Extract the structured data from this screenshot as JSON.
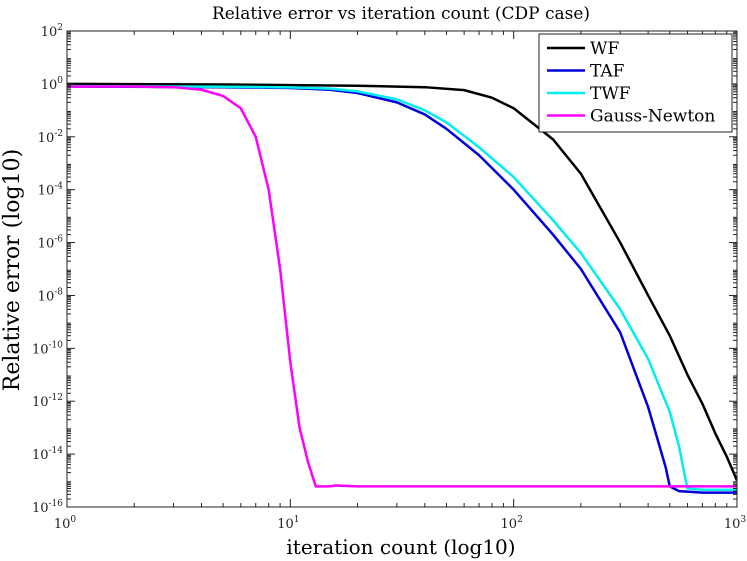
{
  "chart_data": {
    "type": "line",
    "title": "Relative error vs iteration count (CDP case)",
    "xlabel": "iteration count (log10)",
    "ylabel": "Relative error (log10)",
    "xscale": "log",
    "yscale": "log",
    "xlim": [
      1,
      1000
    ],
    "ylim": [
      1e-16,
      100
    ],
    "x_ticks": [
      {
        "value": 1,
        "base": "10",
        "exp": "0"
      },
      {
        "value": 10,
        "base": "10",
        "exp": "1"
      },
      {
        "value": 100,
        "base": "10",
        "exp": "2"
      },
      {
        "value": 1000,
        "base": "10",
        "exp": "3"
      }
    ],
    "y_ticks": [
      {
        "value": 100,
        "base": "10",
        "exp": "2"
      },
      {
        "value": 1,
        "base": "10",
        "exp": "0"
      },
      {
        "value": 0.01,
        "base": "10",
        "exp": "-2"
      },
      {
        "value": 0.0001,
        "base": "10",
        "exp": "-4"
      },
      {
        "value": 1e-06,
        "base": "10",
        "exp": "-6"
      },
      {
        "value": 1e-08,
        "base": "10",
        "exp": "-8"
      },
      {
        "value": 1e-10,
        "base": "10",
        "exp": "-10"
      },
      {
        "value": 1e-12,
        "base": "10",
        "exp": "-12"
      },
      {
        "value": 1e-14,
        "base": "10",
        "exp": "-14"
      },
      {
        "value": 1e-16,
        "base": "10",
        "exp": "-16"
      }
    ],
    "legend_position": "top-right",
    "grid": false,
    "series": [
      {
        "name": "WF",
        "color": "#000000",
        "x": [
          1,
          5,
          10,
          20,
          40,
          60,
          80,
          100,
          150,
          200,
          300,
          400,
          500,
          600,
          700,
          800,
          900,
          1000
        ],
        "y": [
          1.0,
          0.95,
          0.9,
          0.85,
          0.75,
          0.58,
          0.3,
          0.12,
          0.008,
          0.0004,
          1e-06,
          1e-08,
          3e-10,
          1e-11,
          8e-13,
          6e-14,
          8e-15,
          1e-15
        ]
      },
      {
        "name": "TAF",
        "color": "#0000dd",
        "x": [
          1,
          5,
          10,
          15,
          20,
          30,
          40,
          50,
          70,
          100,
          150,
          200,
          300,
          400,
          450,
          480,
          500,
          550,
          700,
          1000
        ],
        "y": [
          0.8,
          0.75,
          0.7,
          0.6,
          0.45,
          0.2,
          0.07,
          0.02,
          0.002,
          0.0001,
          2e-06,
          1e-07,
          4e-10,
          6e-13,
          2e-14,
          3e-15,
          6e-16,
          4e-16,
          3.5e-16,
          3.5e-16
        ]
      },
      {
        "name": "TWF",
        "color": "#00eeee",
        "x": [
          1,
          5,
          10,
          15,
          20,
          30,
          40,
          50,
          70,
          100,
          150,
          200,
          300,
          400,
          500,
          550,
          580,
          600,
          700,
          1000
        ],
        "y": [
          0.82,
          0.78,
          0.74,
          0.66,
          0.52,
          0.26,
          0.1,
          0.035,
          0.004,
          0.0003,
          7e-06,
          4e-07,
          3e-09,
          4e-11,
          4e-13,
          2e-14,
          2e-15,
          5e-16,
          4.5e-16,
          4.5e-16
        ]
      },
      {
        "name": "Gauss-Newton",
        "color": "#ff00ff",
        "x": [
          1,
          2,
          3,
          4,
          5,
          6,
          7,
          8,
          9,
          10,
          11,
          12,
          13,
          15,
          16,
          20,
          50,
          100,
          1000
        ],
        "y": [
          0.8,
          0.8,
          0.75,
          0.6,
          0.35,
          0.12,
          0.01,
          0.0001,
          1e-07,
          3e-11,
          1e-13,
          5e-15,
          6e-16,
          6e-16,
          6.5e-16,
          6e-16,
          6e-16,
          6e-16,
          6e-16
        ]
      }
    ]
  }
}
